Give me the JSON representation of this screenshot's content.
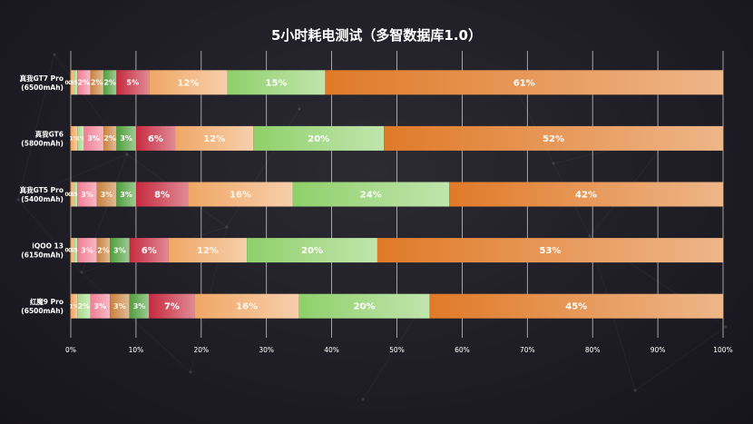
{
  "chart_data": {
    "type": "bar",
    "orientation": "horizontal",
    "stacked": true,
    "percent_stacked": true,
    "title": "5小时耗电测试（多智数据库1.0）",
    "categories": [
      {
        "name": "真我GT7 Pro",
        "sub": "(6500mAh)"
      },
      {
        "name": "真我GT6",
        "sub": "(5800mAh)"
      },
      {
        "name": "真我GT5 Pro",
        "sub": "(5400mAh)"
      },
      {
        "name": "iQOO 13",
        "sub": "(6150mAh)"
      },
      {
        "name": "红魔9 Pro",
        "sub": "(6500mAh)"
      }
    ],
    "series": [
      {
        "color": "#f0a35b",
        "values": [
          0.5,
          1,
          0.5,
          0.5,
          1
        ]
      },
      {
        "color": "#a8d98a",
        "values": [
          0.5,
          1,
          0.5,
          0.5,
          2
        ]
      },
      {
        "color": "#f07e94",
        "values": [
          2,
          3,
          3,
          3,
          3
        ]
      },
      {
        "color": "#c9823e",
        "values": [
          2,
          2,
          3,
          2,
          3
        ]
      },
      {
        "color": "#4f9e3c",
        "values": [
          2,
          3,
          3,
          3,
          3
        ]
      },
      {
        "color": "#c62a3f",
        "values": [
          5,
          6,
          8,
          6,
          7
        ]
      },
      {
        "color": "#f0a766",
        "values": [
          12,
          12,
          16,
          12,
          16
        ]
      },
      {
        "color": "#8fd06a",
        "values": [
          15,
          20,
          24,
          20,
          20
        ]
      },
      {
        "color": "#e07a28",
        "values": [
          61,
          52,
          42,
          53,
          45
        ]
      }
    ],
    "segment_labels": [
      [
        "0.5%",
        "0.5%",
        "2%",
        "2%",
        "2%",
        "5%",
        "12%",
        "15%",
        "61%"
      ],
      [
        "1%",
        "1%",
        "3%",
        "2%",
        "3%",
        "6%",
        "12%",
        "20%",
        "52%"
      ],
      [
        "0.5%",
        "0.5%",
        "3%",
        "3%",
        "3%",
        "8%",
        "16%",
        "24%",
        "42%"
      ],
      [
        "0.5%",
        "0.5%",
        "3%",
        "2%",
        "3%",
        "6%",
        "12%",
        "20%",
        "53%"
      ],
      [
        "1%",
        "2%",
        "3%",
        "3%",
        "3%",
        "7%",
        "16%",
        "20%",
        "45%"
      ]
    ],
    "xlim": [
      0,
      100
    ],
    "xticks": [
      "0%",
      "10%",
      "20%",
      "30%",
      "40%",
      "50%",
      "60%",
      "70%",
      "80%",
      "90%",
      "100%"
    ],
    "grid": true,
    "legend": "none"
  }
}
